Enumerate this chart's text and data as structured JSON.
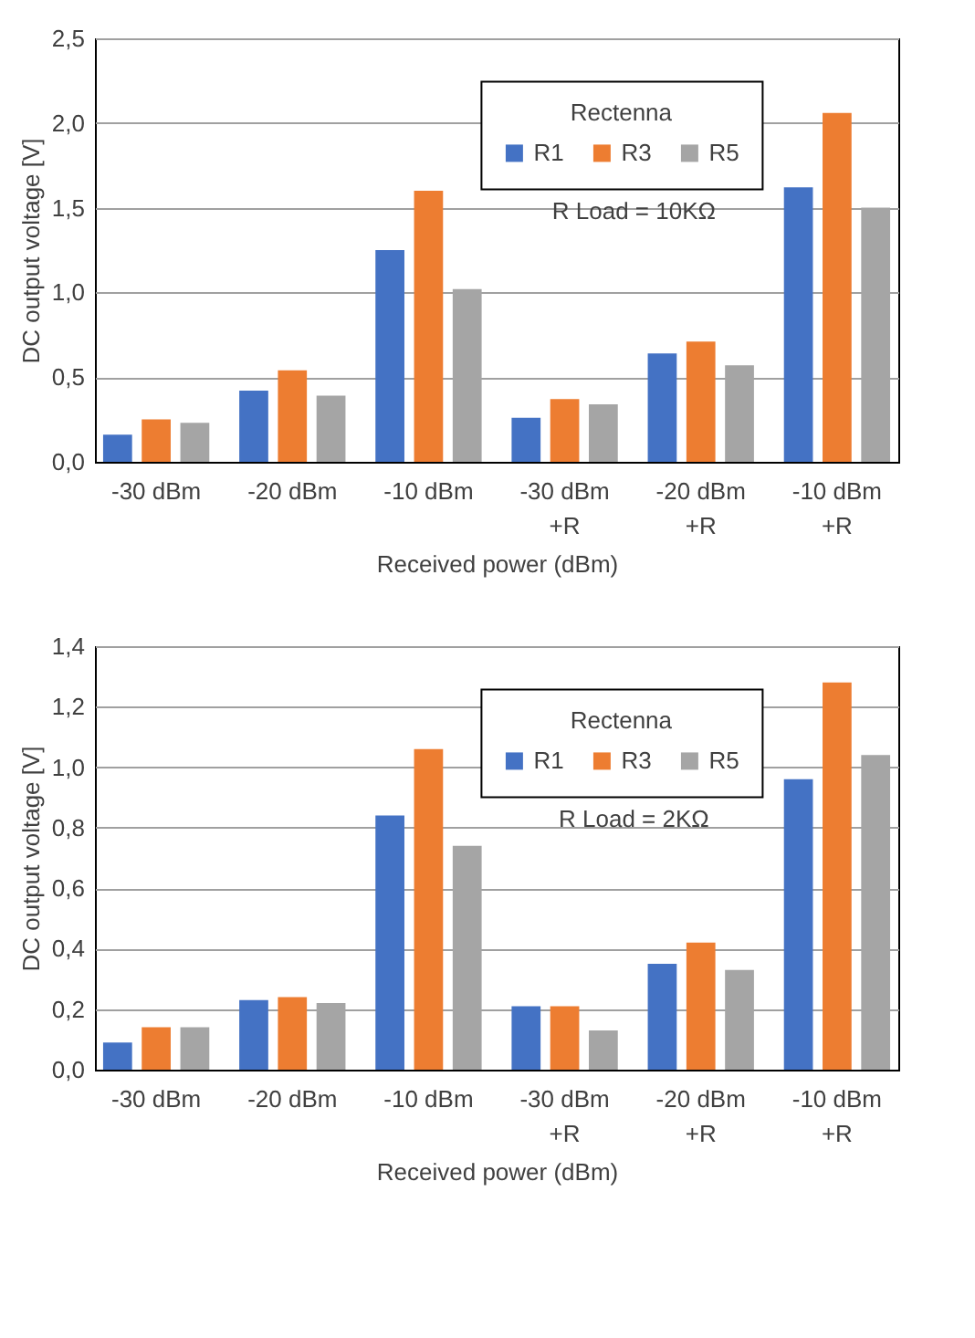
{
  "chart_data": [
    {
      "type": "bar",
      "xlabel": "Received power (dBm)",
      "ylabel": "DC output voltage [V]",
      "legend_title": "Rectenna",
      "legend": "top right",
      "grid": "y",
      "categories": [
        "-30 dBm",
        "-20 dBm",
        "-10 dBm",
        "-30 dBm\n+R",
        "-20 dBm\n+R",
        "-10 dBm\n+R"
      ],
      "ylim": [
        0,
        2.5
      ],
      "yticks": [
        {
          "value": 0,
          "label": "0,0"
        },
        {
          "value": 0.5,
          "label": "0,5"
        },
        {
          "value": 1,
          "label": "1,0"
        },
        {
          "value": 1.5,
          "label": "1,5"
        },
        {
          "value": 2,
          "label": "2,0"
        },
        {
          "value": 2.5,
          "label": "2,5"
        }
      ],
      "annotations": [
        "R Load = 10KΩ"
      ],
      "series": [
        {
          "name": "R1",
          "color": "#4472c4",
          "values": [
            0.16,
            0.42,
            1.25,
            0.26,
            0.64,
            1.62
          ]
        },
        {
          "name": "R3",
          "color": "#ed7d31",
          "values": [
            0.25,
            0.54,
            1.6,
            0.37,
            0.71,
            2.06
          ]
        },
        {
          "name": "R5",
          "color": "#a5a5a5",
          "values": [
            0.23,
            0.39,
            1.02,
            0.34,
            0.57,
            1.5
          ]
        }
      ]
    },
    {
      "type": "bar",
      "xlabel": "Received power (dBm)",
      "ylabel": "DC output voltage [V]",
      "legend_title": "Rectenna",
      "legend": "top right",
      "grid": "y",
      "categories": [
        "-30 dBm",
        "-20 dBm",
        "-10 dBm",
        "-30 dBm\n+R",
        "-20 dBm\n+R",
        "-10 dBm\n+R"
      ],
      "ylim": [
        0,
        1.4
      ],
      "yticks": [
        {
          "value": 0,
          "label": "0,0"
        },
        {
          "value": 0.2,
          "label": "0,2"
        },
        {
          "value": 0.4,
          "label": "0,4"
        },
        {
          "value": 0.6,
          "label": "0,6"
        },
        {
          "value": 0.8,
          "label": "0,8"
        },
        {
          "value": 1,
          "label": "1,0"
        },
        {
          "value": 1.2,
          "label": "1,2"
        },
        {
          "value": 1.4,
          "label": "1,4"
        }
      ],
      "annotations": [
        "R Load = 2KΩ"
      ],
      "series": [
        {
          "name": "R1",
          "color": "#4472c4",
          "values": [
            0.09,
            0.23,
            0.84,
            0.21,
            0.35,
            0.96
          ]
        },
        {
          "name": "R3",
          "color": "#ed7d31",
          "values": [
            0.14,
            0.24,
            1.06,
            0.21,
            0.42,
            1.28
          ]
        },
        {
          "name": "R5",
          "color": "#a5a5a5",
          "values": [
            0.14,
            0.22,
            0.74,
            0.13,
            0.33,
            1.04
          ]
        }
      ]
    }
  ]
}
